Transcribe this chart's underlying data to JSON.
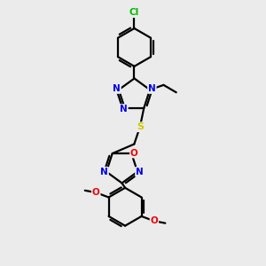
{
  "background_color": "#ebebeb",
  "bond_color": "#000000",
  "atom_colors": {
    "N": "#0000ee",
    "O": "#ee0000",
    "S": "#cccc00",
    "Cl": "#00bb00",
    "C": "#000000"
  },
  "figsize": [
    3.0,
    3.0
  ],
  "dpi": 100
}
